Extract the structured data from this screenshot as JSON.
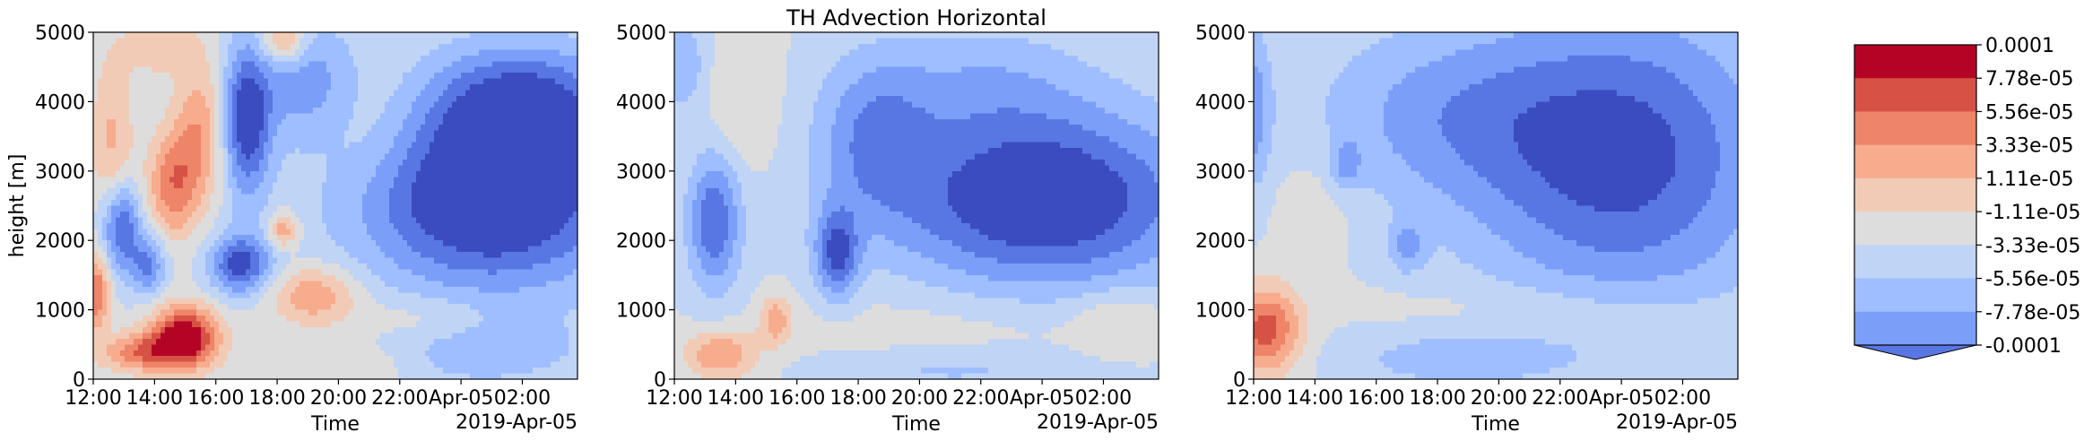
{
  "title": "TH Advection Horizontal",
  "colors": [
    "#3b4cc0",
    "#5977e3",
    "#7b9ff9",
    "#9ebeff",
    "#c0d4f5",
    "#dddddd",
    "#f2cbb7",
    "#f7ac8e",
    "#ee8468",
    "#d65244",
    "#b40426"
  ],
  "chart_data": [
    {
      "type": "heatmap",
      "panel": 1,
      "xlabel": "Time",
      "ylabel": "height [m]",
      "x_ticks": [
        "12:00",
        "14:00",
        "16:00",
        "18:00",
        "20:00",
        "22:00",
        "Apr-05",
        "02:00"
      ],
      "x_offset_label": "2019-Apr-05",
      "y_ticks": [
        "0",
        "1000",
        "2000",
        "3000",
        "4000",
        "5000"
      ],
      "ylim": [
        0,
        5000
      ],
      "grid": false,
      "value_scale": "colorbar levels: 0 = -0.0001 ... 9 = 0.0001",
      "features": [
        {
          "t": 15.0,
          "h": 600,
          "st": 0.8,
          "sh": 320,
          "a": 6.2
        },
        {
          "t": 13.5,
          "h": 380,
          "st": 0.9,
          "sh": 200,
          "a": 3.5
        },
        {
          "t": 12.1,
          "h": 1250,
          "st": 0.3,
          "sh": 400,
          "a": 4.0
        },
        {
          "t": 14.6,
          "h": 2800,
          "st": 0.6,
          "sh": 550,
          "a": 3.6
        },
        {
          "t": 15.5,
          "h": 3600,
          "st": 0.6,
          "sh": 700,
          "a": 2.8
        },
        {
          "t": 18.2,
          "h": 2150,
          "st": 0.35,
          "sh": 180,
          "a": 3.0
        },
        {
          "t": 18.2,
          "h": 4900,
          "st": 0.5,
          "sh": 250,
          "a": 3.2
        },
        {
          "t": 19.2,
          "h": 1200,
          "st": 1.0,
          "sh": 300,
          "a": 3.0
        },
        {
          "t": 14.2,
          "h": 4800,
          "st": 0.9,
          "sh": 300,
          "a": 1.8
        },
        {
          "t": 12.6,
          "h": 3400,
          "st": 0.5,
          "sh": 900,
          "a": 2.2
        },
        {
          "t": 22.8,
          "h": 850,
          "st": 1.6,
          "sh": 250,
          "a": 1.2
        },
        {
          "t": 20.5,
          "h": 200,
          "st": 1.5,
          "sh": 250,
          "a": 1.3
        },
        {
          "t": 21.0,
          "h": 3700,
          "st": 1.2,
          "sh": 700,
          "a": 1.0
        },
        {
          "t": 12.9,
          "h": 2200,
          "st": 0.45,
          "sh": 450,
          "a": -4.5
        },
        {
          "t": 13.8,
          "h": 1650,
          "st": 0.4,
          "sh": 300,
          "a": -3.2
        },
        {
          "t": 16.8,
          "h": 1650,
          "st": 0.7,
          "sh": 300,
          "a": -4.5
        },
        {
          "t": 17.0,
          "h": 3700,
          "st": 0.55,
          "sh": 750,
          "a": -4.8
        },
        {
          "t": 25.0,
          "h": 2600,
          "st": 3.0,
          "sh": 900,
          "a": -6.0
        },
        {
          "t": 26.0,
          "h": 4000,
          "st": 2.2,
          "sh": 600,
          "a": -4.0
        },
        {
          "t": 19.0,
          "h": 4300,
          "st": 1.3,
          "sh": 600,
          "a": -2.5
        },
        {
          "t": 24.5,
          "h": 400,
          "st": 2.5,
          "sh": 350,
          "a": -1.6
        }
      ]
    },
    {
      "type": "heatmap",
      "panel": 2,
      "xlabel": "Time",
      "x_ticks": [
        "12:00",
        "14:00",
        "16:00",
        "18:00",
        "20:00",
        "22:00",
        "Apr-05",
        "02:00"
      ],
      "x_offset_label": "2019-Apr-05",
      "y_ticks": [
        "0",
        "1000",
        "2000",
        "3000",
        "4000",
        "5000"
      ],
      "ylim": [
        0,
        5000
      ],
      "grid": false,
      "value_scale": "colorbar levels: 0 = -0.0001 ... 9 = 0.0001",
      "features": [
        {
          "t": 13.5,
          "h": 350,
          "st": 0.8,
          "sh": 250,
          "a": 3.0
        },
        {
          "t": 15.3,
          "h": 850,
          "st": 0.35,
          "sh": 250,
          "a": 2.5
        },
        {
          "t": 26.5,
          "h": 850,
          "st": 1.0,
          "sh": 300,
          "a": 1.3
        },
        {
          "t": 14.0,
          "h": 4000,
          "st": 1.0,
          "sh": 800,
          "a": 1.0
        },
        {
          "t": 21.0,
          "h": 600,
          "st": 4.0,
          "sh": 500,
          "a": 0.8
        },
        {
          "t": 13.3,
          "h": 2300,
          "st": 0.6,
          "sh": 700,
          "a": -4.0
        },
        {
          "t": 17.3,
          "h": 1800,
          "st": 0.5,
          "sh": 450,
          "a": -4.0
        },
        {
          "t": 24.0,
          "h": 2600,
          "st": 3.5,
          "sh": 900,
          "a": -5.5
        },
        {
          "t": 18.5,
          "h": 3500,
          "st": 1.3,
          "sh": 800,
          "a": -2.5
        },
        {
          "t": 12.3,
          "h": 4500,
          "st": 0.6,
          "sh": 500,
          "a": -2.0
        },
        {
          "t": 22.0,
          "h": 4300,
          "st": 2.5,
          "sh": 600,
          "a": -1.5
        },
        {
          "t": 21.0,
          "h": 150,
          "st": 3.0,
          "sh": 250,
          "a": -1.5
        }
      ]
    },
    {
      "type": "heatmap",
      "panel": 3,
      "xlabel": "Time",
      "x_ticks": [
        "12:00",
        "14:00",
        "16:00",
        "18:00",
        "20:00",
        "22:00",
        "Apr-05",
        "02:00"
      ],
      "x_offset_label": "2019-Apr-05",
      "y_ticks": [
        "0",
        "1000",
        "2000",
        "3000",
        "4000",
        "5000"
      ],
      "ylim": [
        0,
        5000
      ],
      "grid": false,
      "value_scale": "colorbar levels: 0 = -0.0001 ... 9 = 0.0001",
      "features": [
        {
          "t": 12.4,
          "h": 700,
          "st": 0.8,
          "sh": 450,
          "a": 4.5
        },
        {
          "t": 21.5,
          "h": 1000,
          "st": 4.0,
          "sh": 300,
          "a": 0.8
        },
        {
          "t": 14.0,
          "h": 2500,
          "st": 1.0,
          "sh": 600,
          "a": 0.8
        },
        {
          "t": 24.0,
          "h": 3200,
          "st": 3.5,
          "sh": 1500,
          "a": -4.5
        },
        {
          "t": 18.0,
          "h": 3800,
          "st": 3.0,
          "sh": 900,
          "a": -2.0
        },
        {
          "t": 15.0,
          "h": 3100,
          "st": 0.35,
          "sh": 250,
          "a": -2.0
        },
        {
          "t": 12.0,
          "h": 3900,
          "st": 0.4,
          "sh": 800,
          "a": -2.5
        },
        {
          "t": 17.0,
          "h": 1900,
          "st": 0.4,
          "sh": 250,
          "a": -2.0
        },
        {
          "t": 18.5,
          "h": 300,
          "st": 2.5,
          "sh": 300,
          "a": -1.5
        }
      ]
    }
  ],
  "colorbar": {
    "tick_labels": [
      "0.0001",
      "7.78e-05",
      "5.56e-05",
      "3.33e-05",
      "1.11e-05",
      "-1.11e-05",
      "-3.33e-05",
      "-5.56e-05",
      "-7.78e-05",
      "-0.0001"
    ],
    "extend": "min"
  }
}
